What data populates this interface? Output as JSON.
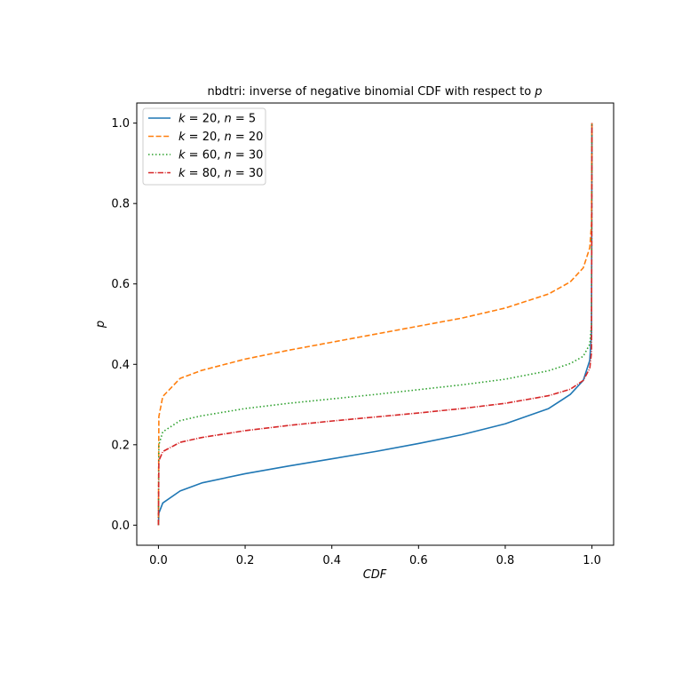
{
  "chart_data": {
    "type": "line",
    "title": "nbdtri: inverse of negative binomial CDF with respect to p",
    "title_main": "nbdtri: inverse of negative binomial CDF with respect to",
    "title_var": "p",
    "xlabel": "CDF",
    "ylabel": "p",
    "xlim": [
      -0.05,
      1.05
    ],
    "ylim": [
      -0.05,
      1.05
    ],
    "xticks": [
      0.0,
      0.2,
      0.4,
      0.6,
      0.8,
      1.0
    ],
    "xtick_labels": [
      "0.0",
      "0.2",
      "0.4",
      "0.6",
      "0.8",
      "1.0"
    ],
    "yticks": [
      0.0,
      0.2,
      0.4,
      0.6,
      0.8,
      1.0
    ],
    "ytick_labels": [
      "0.0",
      "0.2",
      "0.4",
      "0.6",
      "0.8",
      "1.0"
    ],
    "grid": false,
    "legend_position": "top-left",
    "series": [
      {
        "name": "k = 20,  n = 5",
        "legend": {
          "k": "20",
          "n": "5"
        },
        "color": "#1f77b4",
        "style": "solid",
        "x": [
          0.0,
          0.001,
          0.01,
          0.05,
          0.1,
          0.2,
          0.3,
          0.4,
          0.5,
          0.6,
          0.7,
          0.8,
          0.9,
          0.95,
          0.98,
          0.995,
          0.999,
          1.0
        ],
        "y": [
          0.0,
          0.03,
          0.055,
          0.085,
          0.105,
          0.128,
          0.147,
          0.165,
          0.183,
          0.203,
          0.225,
          0.252,
          0.29,
          0.325,
          0.36,
          0.41,
          0.48,
          1.0
        ]
      },
      {
        "name": "k = 20,  n = 20",
        "legend": {
          "k": "20",
          "n": "20"
        },
        "color": "#ff7f0e",
        "style": "dashed",
        "x": [
          0.0,
          0.001,
          0.01,
          0.05,
          0.1,
          0.2,
          0.3,
          0.4,
          0.5,
          0.6,
          0.7,
          0.8,
          0.9,
          0.95,
          0.98,
          0.995,
          0.999,
          1.0
        ],
        "y": [
          0.0,
          0.27,
          0.32,
          0.365,
          0.385,
          0.413,
          0.435,
          0.455,
          0.475,
          0.495,
          0.515,
          0.54,
          0.575,
          0.605,
          0.64,
          0.69,
          0.75,
          1.0
        ]
      },
      {
        "name": "k = 60,  n = 30",
        "legend": {
          "k": "60",
          "n": "30"
        },
        "color": "#2ca02c",
        "style": "dotted",
        "x": [
          0.0,
          0.001,
          0.01,
          0.05,
          0.1,
          0.2,
          0.3,
          0.4,
          0.5,
          0.6,
          0.7,
          0.8,
          0.9,
          0.95,
          0.98,
          0.995,
          0.999,
          1.0
        ],
        "y": [
          0.0,
          0.2,
          0.232,
          0.26,
          0.272,
          0.29,
          0.303,
          0.314,
          0.325,
          0.337,
          0.349,
          0.363,
          0.384,
          0.402,
          0.42,
          0.45,
          0.5,
          1.0
        ]
      },
      {
        "name": "k = 80,  n = 30",
        "legend": {
          "k": "80",
          "n": "30"
        },
        "color": "#d62728",
        "style": "dashdot",
        "x": [
          0.0,
          0.001,
          0.01,
          0.05,
          0.1,
          0.2,
          0.3,
          0.4,
          0.5,
          0.6,
          0.7,
          0.8,
          0.9,
          0.95,
          0.98,
          0.995,
          0.999,
          1.0
        ],
        "y": [
          0.0,
          0.16,
          0.183,
          0.206,
          0.218,
          0.235,
          0.248,
          0.259,
          0.269,
          0.279,
          0.29,
          0.303,
          0.322,
          0.338,
          0.36,
          0.39,
          0.43,
          1.0
        ]
      }
    ]
  }
}
